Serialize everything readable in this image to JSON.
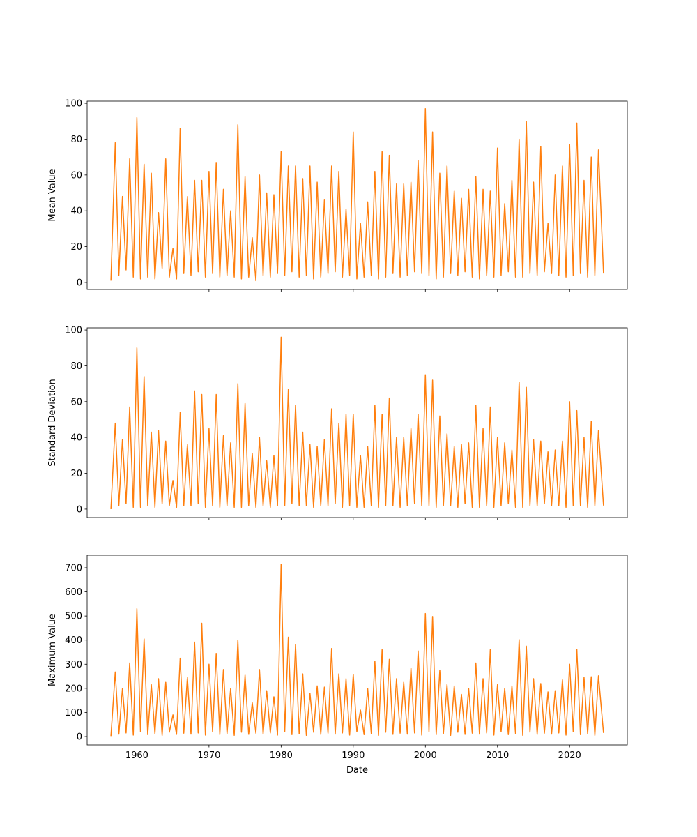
{
  "chart_data": [
    {
      "type": "line",
      "ylabel": "Mean Value",
      "color": "#ff7f0e",
      "x": [
        1956.4,
        1957,
        1957.5,
        1958,
        1958.5,
        1959,
        1959.5,
        1960,
        1960.5,
        1961,
        1961.5,
        1962,
        1962.5,
        1963,
        1963.5,
        1964,
        1964.5,
        1965,
        1965.5,
        1966,
        1966.5,
        1967,
        1967.5,
        1968,
        1968.5,
        1969,
        1969.5,
        1970,
        1970.5,
        1971,
        1971.5,
        1972,
        1972.5,
        1973,
        1973.5,
        1974,
        1974.5,
        1975,
        1975.5,
        1976,
        1976.5,
        1977,
        1977.5,
        1978,
        1978.5,
        1979,
        1979.5,
        1980,
        1980.5,
        1981,
        1981.5,
        1982,
        1982.5,
        1983,
        1983.5,
        1984,
        1984.5,
        1985,
        1985.5,
        1986,
        1986.5,
        1987,
        1987.5,
        1988,
        1988.5,
        1989,
        1989.5,
        1990,
        1990.5,
        1991,
        1991.5,
        1992,
        1992.5,
        1993,
        1993.5,
        1994,
        1994.5,
        1995,
        1995.5,
        1996,
        1996.5,
        1997,
        1997.5,
        1998,
        1998.5,
        1999,
        1999.5,
        2000,
        2000.5,
        2001,
        2001.5,
        2002,
        2002.5,
        2003,
        2003.5,
        2004,
        2004.5,
        2005,
        2005.5,
        2006,
        2006.5,
        2007,
        2007.5,
        2008,
        2008.5,
        2009,
        2009.5,
        2010,
        2010.5,
        2011,
        2011.5,
        2012,
        2012.5,
        2013,
        2013.5,
        2014,
        2014.5,
        2015,
        2015.5,
        2016,
        2016.5,
        2017,
        2017.5,
        2018,
        2018.5,
        2019,
        2019.5,
        2020,
        2020.5,
        2021,
        2021.5,
        2022,
        2022.5,
        2023,
        2023.5,
        2024,
        2024.7
      ],
      "values": [
        1,
        78,
        4,
        48,
        7,
        69,
        3,
        92,
        2,
        66,
        3,
        61,
        2,
        39,
        8,
        69,
        3,
        19,
        2,
        86,
        5,
        48,
        4,
        57,
        6,
        57,
        3,
        62,
        5,
        67,
        3,
        52,
        4,
        40,
        3,
        88,
        2,
        59,
        3,
        25,
        1,
        60,
        4,
        50,
        3,
        49,
        5,
        73,
        4,
        65,
        6,
        65,
        3,
        58,
        4,
        65,
        2,
        56,
        3,
        46,
        5,
        65,
        6,
        62,
        3,
        41,
        4,
        84,
        2,
        33,
        3,
        45,
        4,
        62,
        2,
        73,
        3,
        71,
        5,
        55,
        3,
        55,
        4,
        56,
        6,
        68,
        5,
        97,
        4,
        84,
        2,
        61,
        3,
        65,
        5,
        51,
        4,
        47,
        6,
        52,
        3,
        59,
        2,
        52,
        4,
        51,
        3,
        75,
        4,
        44,
        6,
        57,
        3,
        80,
        3,
        90,
        5,
        56,
        4,
        76,
        6,
        33,
        5,
        60,
        4,
        65,
        3,
        77,
        4,
        89,
        5,
        57,
        3,
        70,
        4,
        74,
        5
      ],
      "xlim": [
        1953.1,
        2028.0
      ],
      "ylim": [
        -3.9,
        101.2
      ],
      "xticks": [
        1960,
        1970,
        1980,
        1990,
        2000,
        2010,
        2020
      ],
      "yticks": [
        0,
        20,
        40,
        60,
        80,
        100
      ]
    },
    {
      "type": "line",
      "ylabel": "Standard Deviation",
      "color": "#ff7f0e",
      "x": [
        1956.4,
        1957,
        1957.5,
        1958,
        1958.5,
        1959,
        1959.5,
        1960,
        1960.5,
        1961,
        1961.5,
        1962,
        1962.5,
        1963,
        1963.5,
        1964,
        1964.5,
        1965,
        1965.5,
        1966,
        1966.5,
        1967,
        1967.5,
        1968,
        1968.5,
        1969,
        1969.5,
        1970,
        1970.5,
        1971,
        1971.5,
        1972,
        1972.5,
        1973,
        1973.5,
        1974,
        1974.5,
        1975,
        1975.5,
        1976,
        1976.5,
        1977,
        1977.5,
        1978,
        1978.5,
        1979,
        1979.5,
        1980,
        1980.5,
        1981,
        1981.5,
        1982,
        1982.5,
        1983,
        1983.5,
        1984,
        1984.5,
        1985,
        1985.5,
        1986,
        1986.5,
        1987,
        1987.5,
        1988,
        1988.5,
        1989,
        1989.5,
        1990,
        1990.5,
        1991,
        1991.5,
        1992,
        1992.5,
        1993,
        1993.5,
        1994,
        1994.5,
        1995,
        1995.5,
        1996,
        1996.5,
        1997,
        1997.5,
        1998,
        1998.5,
        1999,
        1999.5,
        2000,
        2000.5,
        2001,
        2001.5,
        2002,
        2002.5,
        2003,
        2003.5,
        2004,
        2004.5,
        2005,
        2005.5,
        2006,
        2006.5,
        2007,
        2007.5,
        2008,
        2008.5,
        2009,
        2009.5,
        2010,
        2010.5,
        2011,
        2011.5,
        2012,
        2012.5,
        2013,
        2013.5,
        2014,
        2014.5,
        2015,
        2015.5,
        2016,
        2016.5,
        2017,
        2017.5,
        2018,
        2018.5,
        2019,
        2019.5,
        2020,
        2020.5,
        2021,
        2021.5,
        2022,
        2022.5,
        2023,
        2023.5,
        2024,
        2024.7
      ],
      "values": [
        0,
        48,
        2,
        39,
        3,
        57,
        1,
        90,
        1,
        74,
        2,
        43,
        1,
        44,
        3,
        38,
        2,
        16,
        1,
        54,
        2,
        36,
        2,
        66,
        3,
        64,
        1,
        45,
        2,
        64,
        1,
        41,
        2,
        37,
        1,
        70,
        1,
        59,
        2,
        31,
        1,
        40,
        2,
        27,
        1,
        30,
        2,
        96,
        2,
        67,
        3,
        58,
        2,
        43,
        2,
        36,
        1,
        35,
        2,
        39,
        2,
        56,
        3,
        48,
        1,
        53,
        2,
        53,
        1,
        30,
        1,
        35,
        2,
        58,
        1,
        53,
        2,
        62,
        2,
        40,
        1,
        40,
        2,
        45,
        3,
        53,
        2,
        75,
        2,
        72,
        1,
        52,
        2,
        42,
        2,
        35,
        1,
        36,
        3,
        37,
        1,
        58,
        1,
        45,
        2,
        57,
        1,
        40,
        2,
        37,
        3,
        33,
        1,
        71,
        1,
        68,
        2,
        39,
        2,
        38,
        3,
        32,
        2,
        33,
        2,
        38,
        1,
        60,
        2,
        55,
        2,
        40,
        1,
        49,
        2,
        44,
        2
      ],
      "xlim": [
        1953.1,
        2028.0
      ],
      "ylim": [
        -4.7,
        101.2
      ],
      "xticks": [
        1960,
        1970,
        1980,
        1990,
        2000,
        2010,
        2020
      ],
      "yticks": [
        0,
        20,
        40,
        60,
        80,
        100
      ]
    },
    {
      "type": "line",
      "ylabel": "Maximum Value",
      "xlabel": "Date",
      "color": "#ff7f0e",
      "x": [
        1956.4,
        1957,
        1957.5,
        1958,
        1958.5,
        1959,
        1959.5,
        1960,
        1960.5,
        1961,
        1961.5,
        1962,
        1962.5,
        1963,
        1963.5,
        1964,
        1964.5,
        1965,
        1965.5,
        1966,
        1966.5,
        1967,
        1967.5,
        1968,
        1968.5,
        1969,
        1969.5,
        1970,
        1970.5,
        1971,
        1971.5,
        1972,
        1972.5,
        1973,
        1973.5,
        1974,
        1974.5,
        1975,
        1975.5,
        1976,
        1976.5,
        1977,
        1977.5,
        1978,
        1978.5,
        1979,
        1979.5,
        1980,
        1980.5,
        1981,
        1981.5,
        1982,
        1982.5,
        1983,
        1983.5,
        1984,
        1984.5,
        1985,
        1985.5,
        1986,
        1986.5,
        1987,
        1987.5,
        1988,
        1988.5,
        1989,
        1989.5,
        1990,
        1990.5,
        1991,
        1991.5,
        1992,
        1992.5,
        1993,
        1993.5,
        1994,
        1994.5,
        1995,
        1995.5,
        1996,
        1996.5,
        1997,
        1997.5,
        1998,
        1998.5,
        1999,
        1999.5,
        2000,
        2000.5,
        2001,
        2001.5,
        2002,
        2002.5,
        2003,
        2003.5,
        2004,
        2004.5,
        2005,
        2005.5,
        2006,
        2006.5,
        2007,
        2007.5,
        2008,
        2008.5,
        2009,
        2009.5,
        2010,
        2010.5,
        2011,
        2011.5,
        2012,
        2012.5,
        2013,
        2013.5,
        2014,
        2014.5,
        2015,
        2015.5,
        2016,
        2016.5,
        2017,
        2017.5,
        2018,
        2018.5,
        2019,
        2019.5,
        2020,
        2020.5,
        2021,
        2021.5,
        2022,
        2022.5,
        2023,
        2023.5,
        2024,
        2024.7
      ],
      "values": [
        2,
        268,
        10,
        200,
        15,
        305,
        6,
        530,
        20,
        405,
        8,
        215,
        12,
        240,
        5,
        225,
        18,
        90,
        9,
        325,
        14,
        245,
        10,
        392,
        15,
        470,
        6,
        300,
        20,
        345,
        8,
        278,
        12,
        200,
        5,
        400,
        18,
        255,
        9,
        140,
        14,
        278,
        10,
        190,
        15,
        165,
        6,
        715,
        20,
        412,
        8,
        382,
        12,
        260,
        5,
        180,
        18,
        210,
        9,
        205,
        14,
        365,
        10,
        260,
        15,
        240,
        6,
        258,
        20,
        110,
        8,
        200,
        12,
        312,
        5,
        360,
        18,
        320,
        9,
        240,
        14,
        225,
        10,
        285,
        15,
        355,
        6,
        510,
        20,
        498,
        8,
        275,
        12,
        215,
        5,
        210,
        18,
        175,
        9,
        200,
        14,
        305,
        10,
        240,
        15,
        360,
        6,
        215,
        20,
        200,
        8,
        210,
        12,
        402,
        5,
        375,
        18,
        240,
        9,
        220,
        14,
        185,
        10,
        190,
        15,
        235,
        6,
        300,
        20,
        362,
        8,
        245,
        12,
        248,
        5,
        252,
        15
      ],
      "xlim": [
        1953.1,
        2028.0
      ],
      "ylim": [
        -34.7,
        752
      ],
      "xticks": [
        1960,
        1970,
        1980,
        1990,
        2000,
        2010,
        2020
      ],
      "yticks": [
        0,
        100,
        200,
        300,
        400,
        500,
        600,
        700
      ]
    }
  ]
}
